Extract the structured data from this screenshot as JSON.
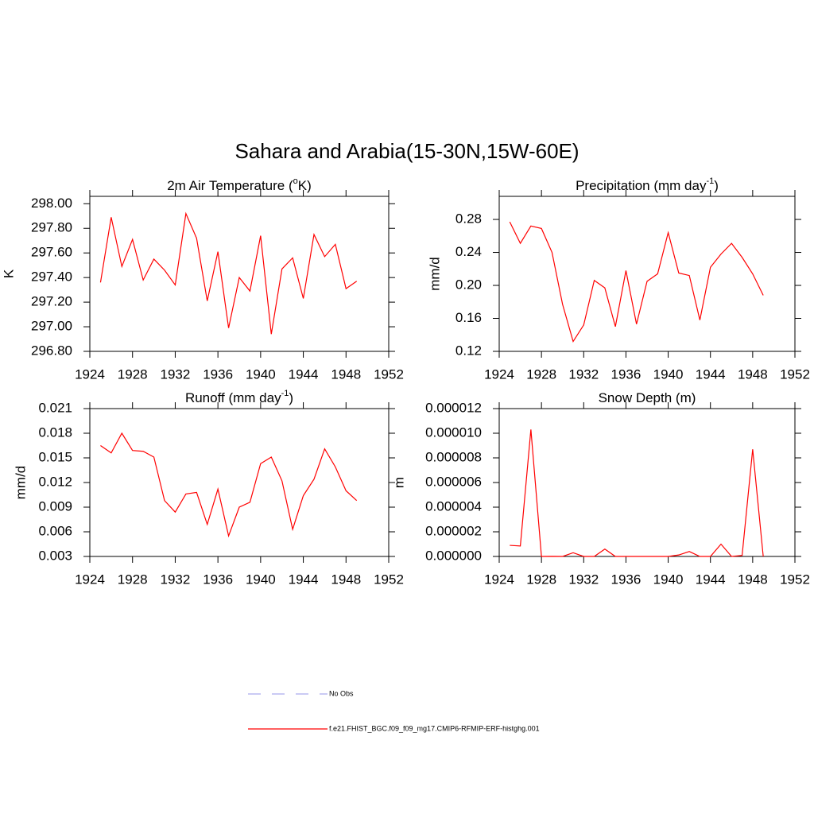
{
  "title": "Sahara and Arabia(15-30N,15W-60E)",
  "legend": [
    {
      "name": "No Obs",
      "color": "#aaaaee",
      "dash": true
    },
    {
      "name": "f.e21.FHIST_BGC.f09_f09_mg17.CMIP6-RFMIP-ERF-histghg.001",
      "color": "#ff0000",
      "dash": false
    }
  ],
  "chart_data": [
    {
      "type": "line",
      "title": [
        "2m Air Temperature (",
        "o",
        "K)"
      ],
      "y_label": "K",
      "color": "#ff0000",
      "x": [
        1925,
        1926,
        1927,
        1928,
        1929,
        1930,
        1931,
        1932,
        1933,
        1934,
        1935,
        1936,
        1937,
        1938,
        1939,
        1940,
        1941,
        1942,
        1943,
        1944,
        1945,
        1946,
        1947,
        1948,
        1949
      ],
      "values": [
        297.36,
        297.89,
        297.49,
        297.71,
        297.38,
        297.55,
        297.46,
        297.34,
        297.92,
        297.72,
        297.21,
        297.61,
        296.99,
        297.4,
        297.29,
        297.74,
        296.94,
        297.47,
        297.56,
        297.23,
        297.75,
        297.57,
        297.67,
        297.31,
        297.37
      ],
      "xlim": [
        1924,
        1952
      ],
      "xticks": [
        1924,
        1928,
        1932,
        1936,
        1940,
        1944,
        1948,
        1952
      ],
      "ylim": [
        296.8,
        298.06
      ],
      "yticks": [
        {
          "value": 296.8,
          "label": "296.80"
        },
        {
          "value": 297.0,
          "label": "297.00"
        },
        {
          "value": 297.2,
          "label": "297.20"
        },
        {
          "value": 297.4,
          "label": "297.40"
        },
        {
          "value": 297.6,
          "label": "297.60"
        },
        {
          "value": 297.8,
          "label": "297.80"
        },
        {
          "value": 298.0,
          "label": "298.00"
        }
      ]
    },
    {
      "type": "line",
      "title": [
        "Precipitation (mm day",
        "-1",
        ")"
      ],
      "y_label": "mm/d",
      "color": "#ff0000",
      "x": [
        1925,
        1926,
        1927,
        1928,
        1929,
        1930,
        1931,
        1932,
        1933,
        1934,
        1935,
        1936,
        1937,
        1938,
        1939,
        1940,
        1941,
        1942,
        1943,
        1944,
        1945,
        1946,
        1947,
        1948,
        1949
      ],
      "values": [
        0.277,
        0.251,
        0.272,
        0.269,
        0.24,
        0.177,
        0.132,
        0.152,
        0.206,
        0.197,
        0.15,
        0.218,
        0.153,
        0.205,
        0.214,
        0.264,
        0.215,
        0.212,
        0.158,
        0.222,
        0.238,
        0.251,
        0.234,
        0.214,
        0.188
      ],
      "xlim": [
        1924,
        1952
      ],
      "xticks": [
        1924,
        1928,
        1932,
        1936,
        1940,
        1944,
        1948,
        1952
      ],
      "ylim": [
        0.12,
        0.308
      ],
      "yticks": [
        0.12,
        0.16,
        {
          "value": 0.2,
          "label": "0.20"
        },
        0.24,
        0.28
      ]
    },
    {
      "type": "line",
      "title": [
        "Runoff (mm day",
        "-1",
        ")"
      ],
      "y_label": "mm/d",
      "color": "#ff0000",
      "x": [
        1925,
        1926,
        1927,
        1928,
        1929,
        1930,
        1931,
        1932,
        1933,
        1934,
        1935,
        1936,
        1937,
        1938,
        1939,
        1940,
        1941,
        1942,
        1943,
        1944,
        1945,
        1946,
        1947,
        1948,
        1949
      ],
      "values": [
        0.0165,
        0.0156,
        0.018,
        0.0159,
        0.0158,
        0.0151,
        0.0098,
        0.0084,
        0.0106,
        0.0108,
        0.0069,
        0.0112,
        0.0055,
        0.009,
        0.0096,
        0.0143,
        0.0151,
        0.0122,
        0.0063,
        0.0104,
        0.0124,
        0.0161,
        0.0139,
        0.011,
        0.0098
      ],
      "xlim": [
        1924,
        1952
      ],
      "xticks": [
        1924,
        1928,
        1932,
        1936,
        1940,
        1944,
        1948,
        1952
      ],
      "ylim": [
        0.003,
        0.021
      ],
      "yticks": [
        0.003,
        0.006,
        0.009,
        0.012,
        0.015,
        0.018,
        0.021
      ]
    },
    {
      "type": "line",
      "title": [
        "Snow Depth (m)"
      ],
      "y_label": "m",
      "color": "#ff0000",
      "x": [
        1925,
        1926,
        1927,
        1928,
        1929,
        1930,
        1931,
        1932,
        1933,
        1934,
        1935,
        1936,
        1937,
        1938,
        1939,
        1940,
        1941,
        1942,
        1943,
        1944,
        1945,
        1946,
        1947,
        1948,
        1949
      ],
      "values": [
        9e-07,
        8.5e-07,
        1.03e-05,
        0,
        1e-08,
        0,
        3e-07,
        0,
        0,
        6e-07,
        0,
        0,
        0,
        0,
        0,
        0,
        1.2e-07,
        4e-07,
        0,
        0,
        1e-06,
        0,
        8e-08,
        8.7e-06,
        0
      ],
      "xlim": [
        1924,
        1952
      ],
      "xticks": [
        1924,
        1928,
        1932,
        1936,
        1940,
        1944,
        1948,
        1952
      ],
      "ylim": [
        0,
        1.2e-05
      ],
      "yticks": [
        {
          "value": 0,
          "label": "0.000000"
        },
        {
          "value": 2e-06,
          "label": "0.000002"
        },
        {
          "value": 4e-06,
          "label": "0.000004"
        },
        {
          "value": 6e-06,
          "label": "0.000006"
        },
        {
          "value": 8e-06,
          "label": "0.000008"
        },
        {
          "value": 1e-05,
          "label": "0.000010"
        },
        {
          "value": 1.2e-05,
          "label": "0.000012"
        }
      ]
    }
  ]
}
